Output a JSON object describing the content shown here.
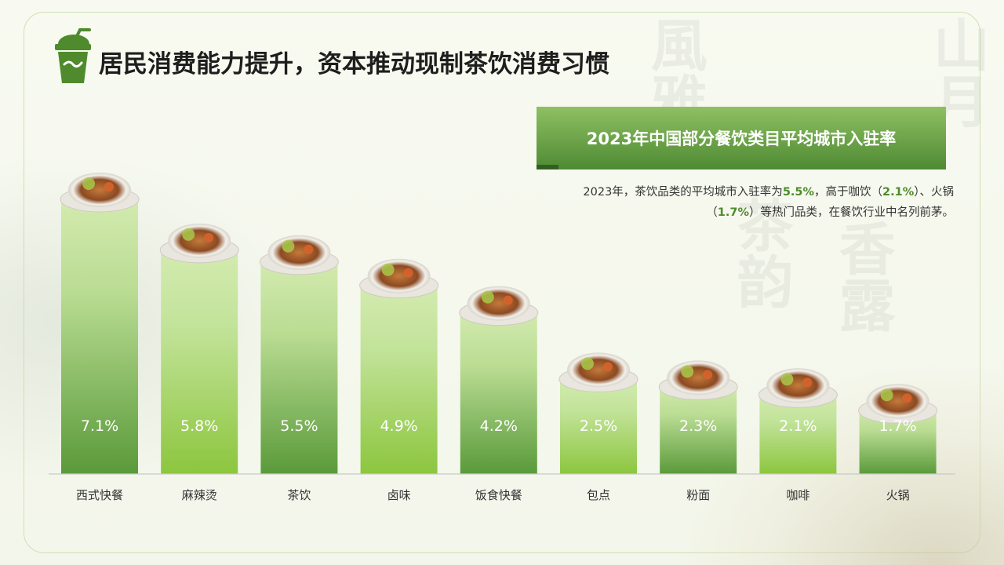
{
  "page": {
    "title": "居民消费能力提升，资本推动现制茶饮消费习惯",
    "watermark_chars": [
      "風",
      "雅",
      "茶",
      "韵",
      "香",
      "露",
      "山",
      "月"
    ]
  },
  "banner": {
    "text": "2023年中国部分餐饮类目平均城市入驻率"
  },
  "description": {
    "p1": "2023年，茶饮品类的平均城市入驻率为",
    "v1": "5.5%",
    "p2": "，高于咖饮（",
    "v2": "2.1%",
    "p3": "）、火锅",
    "p4": "（",
    "v3": "1.7%",
    "p5": "）等热门品类，在餐饮行业中名列前茅。"
  },
  "colors": {
    "accent_green": "#4f8a2d",
    "banner_top": "#8fc063",
    "banner_bottom": "#4e8a33",
    "bar_light": "#d4ebb0",
    "bar_dark_a": "#5a9a3a",
    "bar_dark_b": "#8cc63e"
  },
  "icons": [
    "tea-cup-icon",
    "food-dish-icon"
  ],
  "chart_data": {
    "type": "bar",
    "title": "2023年中国部分餐饮类目平均城市入驻率",
    "categories": [
      "西式快餐",
      "麻辣烫",
      "茶饮",
      "卤味",
      "饭食快餐",
      "包点",
      "粉面",
      "咖啡",
      "火锅"
    ],
    "values": [
      7.1,
      5.8,
      5.5,
      4.9,
      4.2,
      2.5,
      2.3,
      2.1,
      1.7
    ],
    "labels": [
      "7.1%",
      "5.8%",
      "5.5%",
      "4.9%",
      "4.2%",
      "2.5%",
      "2.3%",
      "2.1%",
      "1.7%"
    ],
    "unit": "%",
    "grid": false,
    "legend": "none"
  }
}
